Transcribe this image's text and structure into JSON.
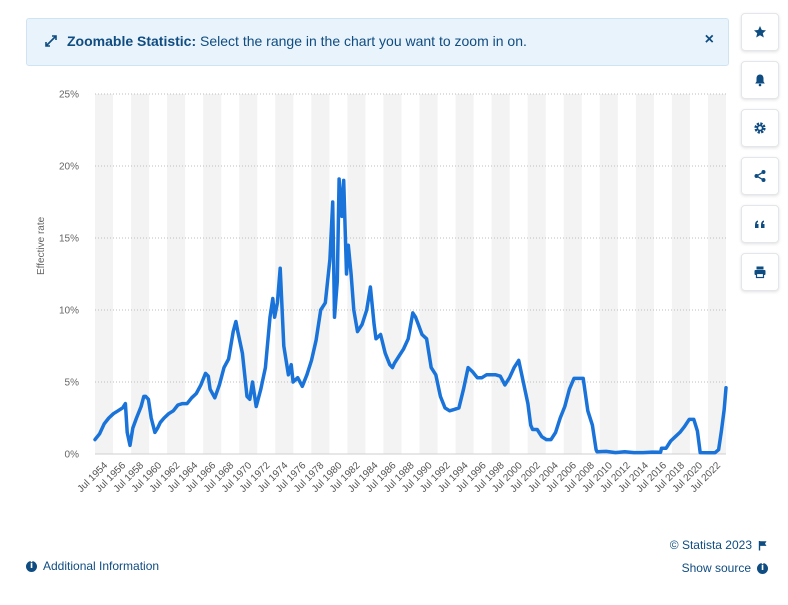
{
  "banner": {
    "title": "Zoomable Statistic:",
    "message": " Select the range in the chart you want to zoom in on.",
    "close": "×"
  },
  "sidebar": {
    "items": [
      {
        "icon": "star-icon",
        "name": "favorite"
      },
      {
        "icon": "bell-icon",
        "name": "notification"
      },
      {
        "icon": "gear-icon",
        "name": "settings"
      },
      {
        "icon": "share-icon",
        "name": "share"
      },
      {
        "icon": "quote-icon",
        "name": "cite"
      },
      {
        "icon": "print-icon",
        "name": "print"
      }
    ]
  },
  "footer": {
    "additional_info": "Additional Information",
    "copyright": "© Statista 2023",
    "show_source": "Show source"
  },
  "colors": {
    "line": "#1a73d9",
    "brand": "#0f4c81",
    "band": "#f3f3f3"
  },
  "chart_data": {
    "type": "line",
    "ylabel": "Effective rate",
    "xlabel": "",
    "ylim": [
      0,
      25
    ],
    "yticks": [
      "0%",
      "5%",
      "10%",
      "15%",
      "20%",
      "25%"
    ],
    "xticks": [
      "Jul 1954",
      "Jul 1956",
      "Jul 1958",
      "Jul 1960",
      "Jul 1962",
      "Jul 1964",
      "Jul 1966",
      "Jul 1968",
      "Jul 1970",
      "Jul 1972",
      "Jul 1974",
      "Jul 1976",
      "Jul 1978",
      "Jul 1980",
      "Jul 1982",
      "Jul 1984",
      "Jul 1986",
      "Jul 1988",
      "Jul 1990",
      "Jul 1992",
      "Jul 1994",
      "Jul 1996",
      "Jul 1998",
      "Jul 2000",
      "Jul 2002",
      "Jul 2004",
      "Jul 2006",
      "Jul 2008",
      "Jul 2010",
      "Jul 2012",
      "Jul 2014",
      "Jul 2016",
      "Jul 2018",
      "Jul 2020",
      "Jul 2022"
    ],
    "x_start": 1954.5,
    "x_end": 2023.0,
    "grid": "horizontal dotted",
    "series": [
      {
        "points": [
          [
            1954.5,
            1.0
          ],
          [
            1955.0,
            1.4
          ],
          [
            1955.5,
            2.1
          ],
          [
            1956.0,
            2.5
          ],
          [
            1956.5,
            2.8
          ],
          [
            1957.0,
            3.0
          ],
          [
            1957.5,
            3.2
          ],
          [
            1957.8,
            3.5
          ],
          [
            1958.0,
            1.5
          ],
          [
            1958.3,
            0.6
          ],
          [
            1958.6,
            1.8
          ],
          [
            1959.0,
            2.5
          ],
          [
            1959.5,
            3.3
          ],
          [
            1959.8,
            4.0
          ],
          [
            1960.0,
            4.0
          ],
          [
            1960.3,
            3.8
          ],
          [
            1960.6,
            2.5
          ],
          [
            1961.0,
            1.5
          ],
          [
            1961.3,
            1.8
          ],
          [
            1961.6,
            2.2
          ],
          [
            1962.0,
            2.5
          ],
          [
            1962.5,
            2.8
          ],
          [
            1963.0,
            3.0
          ],
          [
            1963.5,
            3.4
          ],
          [
            1964.0,
            3.5
          ],
          [
            1964.5,
            3.5
          ],
          [
            1965.0,
            3.9
          ],
          [
            1965.5,
            4.2
          ],
          [
            1966.0,
            4.8
          ],
          [
            1966.5,
            5.6
          ],
          [
            1966.8,
            5.4
          ],
          [
            1967.0,
            4.5
          ],
          [
            1967.5,
            3.9
          ],
          [
            1968.0,
            4.8
          ],
          [
            1968.5,
            6.0
          ],
          [
            1969.0,
            6.6
          ],
          [
            1969.5,
            8.5
          ],
          [
            1969.8,
            9.2
          ],
          [
            1970.0,
            8.5
          ],
          [
            1970.5,
            7.0
          ],
          [
            1971.0,
            4.0
          ],
          [
            1971.3,
            3.8
          ],
          [
            1971.6,
            5.0
          ],
          [
            1972.0,
            3.3
          ],
          [
            1972.5,
            4.5
          ],
          [
            1973.0,
            6.0
          ],
          [
            1973.5,
            9.5
          ],
          [
            1973.8,
            10.8
          ],
          [
            1974.0,
            9.5
          ],
          [
            1974.3,
            10.5
          ],
          [
            1974.6,
            12.9
          ],
          [
            1975.0,
            7.5
          ],
          [
            1975.5,
            5.5
          ],
          [
            1975.8,
            6.2
          ],
          [
            1976.0,
            5.0
          ],
          [
            1976.5,
            5.3
          ],
          [
            1977.0,
            4.7
          ],
          [
            1977.5,
            5.5
          ],
          [
            1978.0,
            6.5
          ],
          [
            1978.5,
            7.9
          ],
          [
            1979.0,
            10.0
          ],
          [
            1979.5,
            10.5
          ],
          [
            1980.0,
            13.5
          ],
          [
            1980.3,
            17.5
          ],
          [
            1980.5,
            9.5
          ],
          [
            1980.8,
            12.0
          ],
          [
            1981.0,
            19.1
          ],
          [
            1981.3,
            16.5
          ],
          [
            1981.5,
            19.0
          ],
          [
            1981.8,
            12.5
          ],
          [
            1982.0,
            14.5
          ],
          [
            1982.3,
            12.5
          ],
          [
            1982.6,
            10.0
          ],
          [
            1983.0,
            8.5
          ],
          [
            1983.5,
            9.0
          ],
          [
            1984.0,
            10.0
          ],
          [
            1984.4,
            11.6
          ],
          [
            1984.8,
            9.0
          ],
          [
            1985.0,
            8.0
          ],
          [
            1985.5,
            8.3
          ],
          [
            1986.0,
            7.0
          ],
          [
            1986.5,
            6.2
          ],
          [
            1986.8,
            6.0
          ],
          [
            1987.0,
            6.3
          ],
          [
            1987.5,
            6.8
          ],
          [
            1988.0,
            7.3
          ],
          [
            1988.5,
            8.0
          ],
          [
            1989.0,
            9.8
          ],
          [
            1989.3,
            9.5
          ],
          [
            1989.6,
            9.0
          ],
          [
            1990.0,
            8.3
          ],
          [
            1990.5,
            8.0
          ],
          [
            1991.0,
            6.0
          ],
          [
            1991.5,
            5.5
          ],
          [
            1992.0,
            4.0
          ],
          [
            1992.5,
            3.2
          ],
          [
            1993.0,
            3.0
          ],
          [
            1993.5,
            3.1
          ],
          [
            1994.0,
            3.2
          ],
          [
            1994.5,
            4.5
          ],
          [
            1995.0,
            6.0
          ],
          [
            1995.5,
            5.7
          ],
          [
            1996.0,
            5.3
          ],
          [
            1996.5,
            5.3
          ],
          [
            1997.0,
            5.5
          ],
          [
            1997.5,
            5.5
          ],
          [
            1998.0,
            5.5
          ],
          [
            1998.5,
            5.4
          ],
          [
            1999.0,
            4.8
          ],
          [
            1999.5,
            5.3
          ],
          [
            2000.0,
            6.0
          ],
          [
            2000.5,
            6.5
          ],
          [
            2001.0,
            5.0
          ],
          [
            2001.5,
            3.5
          ],
          [
            2001.8,
            2.0
          ],
          [
            2002.0,
            1.7
          ],
          [
            2002.5,
            1.7
          ],
          [
            2003.0,
            1.2
          ],
          [
            2003.5,
            1.0
          ],
          [
            2004.0,
            1.0
          ],
          [
            2004.5,
            1.5
          ],
          [
            2005.0,
            2.5
          ],
          [
            2005.5,
            3.3
          ],
          [
            2006.0,
            4.5
          ],
          [
            2006.5,
            5.25
          ],
          [
            2007.0,
            5.25
          ],
          [
            2007.5,
            5.25
          ],
          [
            2008.0,
            3.0
          ],
          [
            2008.5,
            2.0
          ],
          [
            2008.9,
            0.3
          ],
          [
            2009.0,
            0.15
          ],
          [
            2010.0,
            0.18
          ],
          [
            2011.0,
            0.1
          ],
          [
            2012.0,
            0.15
          ],
          [
            2013.0,
            0.1
          ],
          [
            2014.0,
            0.1
          ],
          [
            2015.0,
            0.13
          ],
          [
            2015.9,
            0.12
          ],
          [
            2016.0,
            0.4
          ],
          [
            2016.5,
            0.4
          ],
          [
            2017.0,
            0.9
          ],
          [
            2017.5,
            1.2
          ],
          [
            2018.0,
            1.5
          ],
          [
            2018.5,
            1.9
          ],
          [
            2019.0,
            2.4
          ],
          [
            2019.5,
            2.4
          ],
          [
            2019.9,
            1.6
          ],
          [
            2020.2,
            0.1
          ],
          [
            2021.0,
            0.08
          ],
          [
            2021.8,
            0.08
          ],
          [
            2022.2,
            0.3
          ],
          [
            2022.5,
            1.6
          ],
          [
            2022.8,
            3.1
          ],
          [
            2023.0,
            4.6
          ]
        ]
      }
    ]
  }
}
